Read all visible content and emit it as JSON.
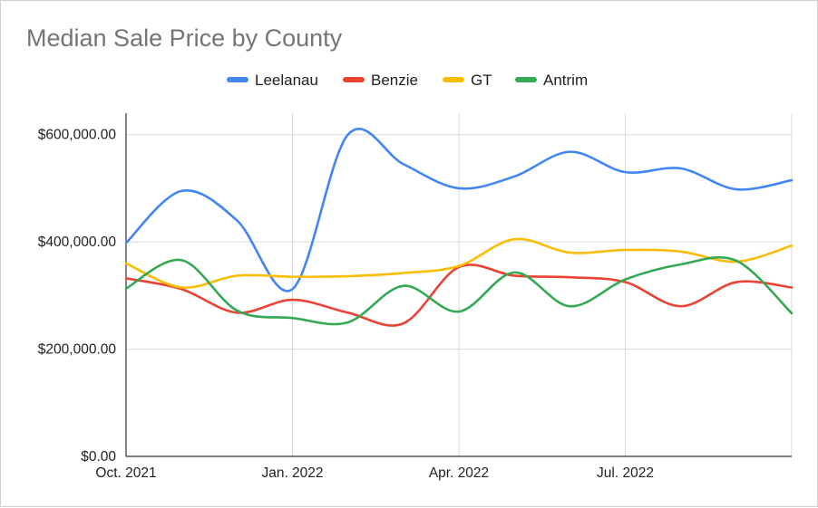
{
  "chart_data": {
    "type": "line",
    "title": "Median Sale Price by County",
    "xlabel": "",
    "ylabel": "",
    "legend_position": "top",
    "grid": true,
    "x": [
      "2021-10",
      "2021-11",
      "2021-12",
      "2022-01",
      "2022-02",
      "2022-03",
      "2022-04",
      "2022-05",
      "2022-06",
      "2022-07",
      "2022-08",
      "2022-09",
      "2022-10"
    ],
    "x_ticks": [
      "Oct. 2021",
      "Jan. 2022",
      "Apr. 2022",
      "Jul. 2022"
    ],
    "y_ticks": [
      "$0.00",
      "$200,000.00",
      "$400,000.00",
      "$600,000.00"
    ],
    "ylim": [
      0,
      640000
    ],
    "series": [
      {
        "name": "Leelanau",
        "color": "#4285f4",
        "values": [
          398000,
          495000,
          440000,
          312000,
          600000,
          545000,
          500000,
          522000,
          568000,
          530000,
          537000,
          498000,
          515000
        ]
      },
      {
        "name": "Benzie",
        "color": "#ea4335",
        "values": [
          332000,
          312000,
          268000,
          292000,
          268000,
          248000,
          353000,
          337000,
          334000,
          325000,
          280000,
          325000,
          315000
        ]
      },
      {
        "name": "GT",
        "color": "#fbbc04",
        "values": [
          360000,
          315000,
          337000,
          335000,
          336000,
          342000,
          355000,
          405000,
          380000,
          385000,
          382000,
          363000,
          393000
        ]
      },
      {
        "name": "Antrim",
        "color": "#34a853",
        "values": [
          313000,
          366000,
          272000,
          258000,
          250000,
          318000,
          270000,
          343000,
          280000,
          330000,
          358000,
          365000,
          267000
        ]
      }
    ]
  }
}
